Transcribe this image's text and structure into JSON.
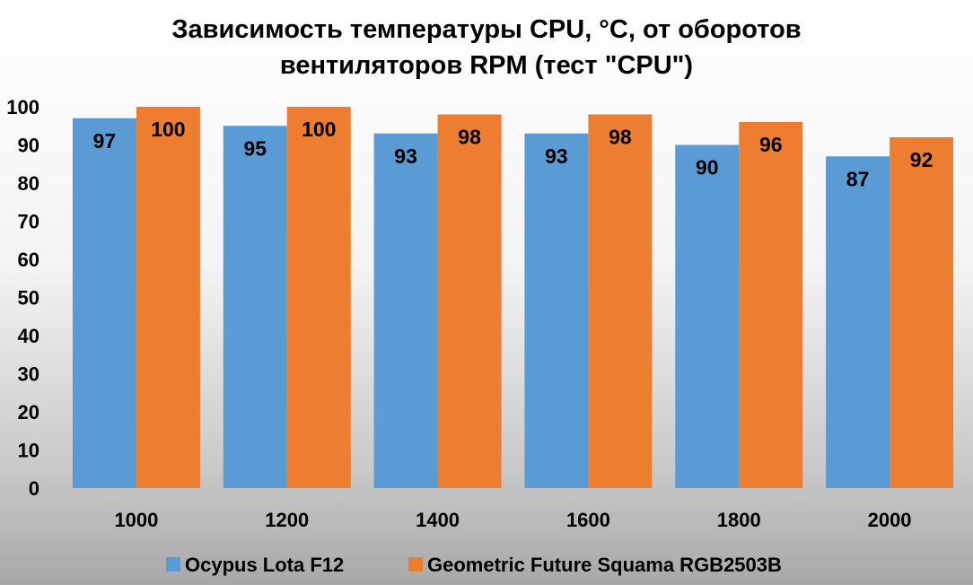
{
  "chart_data": {
    "type": "bar",
    "title_line1": "Зависимость температуры CPU, °С, от оборотов",
    "title_line2": "вентиляторов RPM (тест \"CPU\")",
    "categories": [
      "1000",
      "1200",
      "1400",
      "1600",
      "1800",
      "2000"
    ],
    "series": [
      {
        "name": "Ocypus Lota F12",
        "color": "#5b9bd5",
        "values": [
          97,
          95,
          93,
          93,
          90,
          87
        ]
      },
      {
        "name": "Geometric Future Squama RGB2503B",
        "color": "#ed7d31",
        "values": [
          100,
          100,
          98,
          98,
          96,
          92
        ]
      }
    ],
    "ylim": [
      0,
      100
    ],
    "yticks": [
      "0",
      "10",
      "20",
      "30",
      "40",
      "50",
      "60",
      "70",
      "80",
      "90",
      "100"
    ],
    "grid": false,
    "legend_position": "bottom",
    "data_labels": true
  }
}
